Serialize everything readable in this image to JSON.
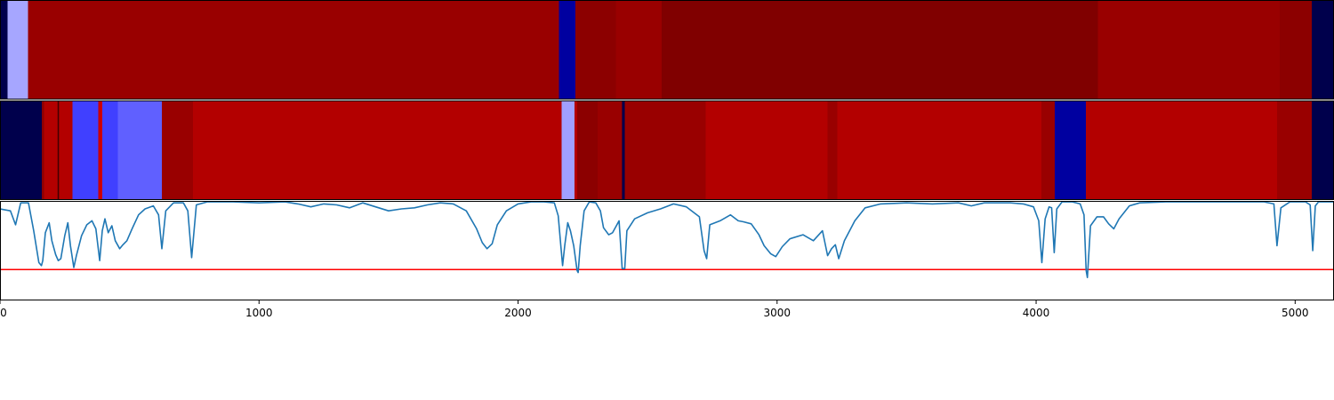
{
  "chart_data": [
    {
      "type": "heatmap",
      "panel": "top",
      "segments": [
        {
          "start": 0,
          "end": 30,
          "color": "#00004c"
        },
        {
          "start": 30,
          "end": 108,
          "color": "#a6a6ff"
        },
        {
          "start": 108,
          "end": 2158,
          "color": "#990000"
        },
        {
          "start": 2158,
          "end": 2222,
          "color": "#0000a0"
        },
        {
          "start": 2222,
          "end": 2378,
          "color": "#8c0000"
        },
        {
          "start": 2378,
          "end": 2555,
          "color": "#990000"
        },
        {
          "start": 2555,
          "end": 4238,
          "color": "#800000"
        },
        {
          "start": 4238,
          "end": 4940,
          "color": "#990000"
        },
        {
          "start": 4940,
          "end": 5065,
          "color": "#8c0000"
        },
        {
          "start": 5065,
          "end": 5150,
          "color": "#00004c"
        }
      ]
    },
    {
      "type": "heatmap",
      "panel": "middle",
      "segments": [
        {
          "start": 0,
          "end": 162,
          "color": "#00004c"
        },
        {
          "start": 162,
          "end": 170,
          "color": "#8c0000"
        },
        {
          "start": 170,
          "end": 280,
          "color": "#b30000"
        },
        {
          "start": 280,
          "end": 380,
          "color": "#4040ff"
        },
        {
          "start": 380,
          "end": 395,
          "color": "#cc0000"
        },
        {
          "start": 395,
          "end": 455,
          "color": "#4040ff"
        },
        {
          "start": 455,
          "end": 625,
          "color": "#6060ff"
        },
        {
          "start": 625,
          "end": 745,
          "color": "#990000"
        },
        {
          "start": 745,
          "end": 2168,
          "color": "#b30000"
        },
        {
          "start": 2168,
          "end": 2218,
          "color": "#a0a0ff"
        },
        {
          "start": 2218,
          "end": 2228,
          "color": "#b30000"
        },
        {
          "start": 2228,
          "end": 2308,
          "color": "#8c0000"
        },
        {
          "start": 2308,
          "end": 2402,
          "color": "#990000"
        },
        {
          "start": 2402,
          "end": 2412,
          "color": "#00004c"
        },
        {
          "start": 2412,
          "end": 2725,
          "color": "#990000"
        },
        {
          "start": 2725,
          "end": 3195,
          "color": "#b30000"
        },
        {
          "start": 3195,
          "end": 3232,
          "color": "#990000"
        },
        {
          "start": 3232,
          "end": 4020,
          "color": "#b30000"
        },
        {
          "start": 4020,
          "end": 4072,
          "color": "#990000"
        },
        {
          "start": 4072,
          "end": 4192,
          "color": "#0000a0"
        },
        {
          "start": 4192,
          "end": 4930,
          "color": "#b30000"
        },
        {
          "start": 4930,
          "end": 5065,
          "color": "#990000"
        },
        {
          "start": 5065,
          "end": 5150,
          "color": "#00004c"
        }
      ],
      "thin_lines": [
        {
          "x": 225,
          "color": "#400000"
        },
        {
          "x": 2404,
          "color": "#00004c"
        }
      ]
    },
    {
      "type": "line",
      "panel": "bottom",
      "xlim": [
        0,
        5150
      ],
      "ylim": [
        0,
        1
      ],
      "xticks": [
        0,
        1000,
        2000,
        3000,
        4000,
        5000
      ],
      "xtick_labels": [
        "0",
        "1000",
        "2000",
        "3000",
        "4000",
        "5000"
      ],
      "threshold": {
        "y": 0.31,
        "color": "#ff0000"
      },
      "series_color": "#1f77b4",
      "points": [
        [
          0,
          0.92
        ],
        [
          40,
          0.9
        ],
        [
          60,
          0.76
        ],
        [
          80,
          0.98
        ],
        [
          110,
          0.98
        ],
        [
          130,
          0.7
        ],
        [
          150,
          0.38
        ],
        [
          160,
          0.35
        ],
        [
          165,
          0.4
        ],
        [
          175,
          0.68
        ],
        [
          190,
          0.78
        ],
        [
          200,
          0.6
        ],
        [
          215,
          0.46
        ],
        [
          225,
          0.4
        ],
        [
          235,
          0.42
        ],
        [
          250,
          0.65
        ],
        [
          262,
          0.78
        ],
        [
          272,
          0.55
        ],
        [
          285,
          0.33
        ],
        [
          295,
          0.45
        ],
        [
          315,
          0.65
        ],
        [
          335,
          0.76
        ],
        [
          355,
          0.8
        ],
        [
          370,
          0.72
        ],
        [
          385,
          0.4
        ],
        [
          395,
          0.7
        ],
        [
          405,
          0.82
        ],
        [
          418,
          0.68
        ],
        [
          432,
          0.75
        ],
        [
          445,
          0.6
        ],
        [
          462,
          0.52
        ],
        [
          475,
          0.56
        ],
        [
          490,
          0.6
        ],
        [
          510,
          0.72
        ],
        [
          535,
          0.86
        ],
        [
          560,
          0.92
        ],
        [
          592,
          0.95
        ],
        [
          612,
          0.86
        ],
        [
          625,
          0.52
        ],
        [
          640,
          0.9
        ],
        [
          670,
          0.98
        ],
        [
          708,
          0.98
        ],
        [
          725,
          0.9
        ],
        [
          740,
          0.43
        ],
        [
          758,
          0.96
        ],
        [
          800,
          0.99
        ],
        [
          900,
          0.99
        ],
        [
          1000,
          0.98
        ],
        [
          1100,
          0.99
        ],
        [
          1150,
          0.97
        ],
        [
          1200,
          0.94
        ],
        [
          1250,
          0.97
        ],
        [
          1300,
          0.96
        ],
        [
          1350,
          0.93
        ],
        [
          1400,
          0.98
        ],
        [
          1450,
          0.94
        ],
        [
          1500,
          0.9
        ],
        [
          1550,
          0.92
        ],
        [
          1600,
          0.93
        ],
        [
          1650,
          0.96
        ],
        [
          1700,
          0.98
        ],
        [
          1750,
          0.97
        ],
        [
          1800,
          0.9
        ],
        [
          1840,
          0.72
        ],
        [
          1862,
          0.58
        ],
        [
          1880,
          0.52
        ],
        [
          1900,
          0.57
        ],
        [
          1920,
          0.76
        ],
        [
          1955,
          0.9
        ],
        [
          2000,
          0.97
        ],
        [
          2050,
          0.99
        ],
        [
          2100,
          0.99
        ],
        [
          2140,
          0.98
        ],
        [
          2155,
          0.85
        ],
        [
          2165,
          0.55
        ],
        [
          2172,
          0.35
        ],
        [
          2180,
          0.55
        ],
        [
          2192,
          0.78
        ],
        [
          2202,
          0.7
        ],
        [
          2215,
          0.55
        ],
        [
          2228,
          0.3
        ],
        [
          2232,
          0.28
        ],
        [
          2240,
          0.55
        ],
        [
          2255,
          0.9
        ],
        [
          2275,
          0.99
        ],
        [
          2300,
          0.98
        ],
        [
          2318,
          0.9
        ],
        [
          2330,
          0.73
        ],
        [
          2350,
          0.66
        ],
        [
          2365,
          0.68
        ],
        [
          2390,
          0.8
        ],
        [
          2402,
          0.32
        ],
        [
          2412,
          0.32
        ],
        [
          2420,
          0.7
        ],
        [
          2450,
          0.82
        ],
        [
          2500,
          0.88
        ],
        [
          2550,
          0.92
        ],
        [
          2600,
          0.97
        ],
        [
          2650,
          0.94
        ],
        [
          2700,
          0.84
        ],
        [
          2718,
          0.5
        ],
        [
          2728,
          0.42
        ],
        [
          2740,
          0.76
        ],
        [
          2780,
          0.8
        ],
        [
          2820,
          0.86
        ],
        [
          2850,
          0.8
        ],
        [
          2870,
          0.79
        ],
        [
          2900,
          0.77
        ],
        [
          2930,
          0.66
        ],
        [
          2950,
          0.55
        ],
        [
          2975,
          0.47
        ],
        [
          2995,
          0.44
        ],
        [
          3020,
          0.54
        ],
        [
          3050,
          0.62
        ],
        [
          3100,
          0.66
        ],
        [
          3140,
          0.6
        ],
        [
          3175,
          0.7
        ],
        [
          3195,
          0.45
        ],
        [
          3210,
          0.52
        ],
        [
          3225,
          0.56
        ],
        [
          3238,
          0.42
        ],
        [
          3260,
          0.6
        ],
        [
          3300,
          0.8
        ],
        [
          3340,
          0.93
        ],
        [
          3400,
          0.97
        ],
        [
          3500,
          0.98
        ],
        [
          3600,
          0.97
        ],
        [
          3700,
          0.98
        ],
        [
          3750,
          0.95
        ],
        [
          3800,
          0.98
        ],
        [
          3850,
          0.98
        ],
        [
          3900,
          0.98
        ],
        [
          3950,
          0.97
        ],
        [
          3990,
          0.94
        ],
        [
          4010,
          0.8
        ],
        [
          4022,
          0.38
        ],
        [
          4035,
          0.82
        ],
        [
          4050,
          0.94
        ],
        [
          4060,
          0.93
        ],
        [
          4070,
          0.48
        ],
        [
          4080,
          0.92
        ],
        [
          4100,
          0.99
        ],
        [
          4140,
          0.99
        ],
        [
          4170,
          0.97
        ],
        [
          4185,
          0.86
        ],
        [
          4193,
          0.3
        ],
        [
          4198,
          0.23
        ],
        [
          4210,
          0.75
        ],
        [
          4235,
          0.84
        ],
        [
          4260,
          0.84
        ],
        [
          4280,
          0.77
        ],
        [
          4300,
          0.72
        ],
        [
          4320,
          0.82
        ],
        [
          4360,
          0.95
        ],
        [
          4400,
          0.98
        ],
        [
          4500,
          0.99
        ],
        [
          4600,
          0.99
        ],
        [
          4700,
          0.99
        ],
        [
          4800,
          0.99
        ],
        [
          4880,
          0.99
        ],
        [
          4918,
          0.97
        ],
        [
          4930,
          0.55
        ],
        [
          4945,
          0.93
        ],
        [
          4980,
          0.99
        ],
        [
          5040,
          0.99
        ],
        [
          5058,
          0.96
        ],
        [
          5068,
          0.5
        ],
        [
          5078,
          0.95
        ],
        [
          5090,
          0.99
        ],
        [
          5150,
          0.99
        ]
      ]
    }
  ]
}
